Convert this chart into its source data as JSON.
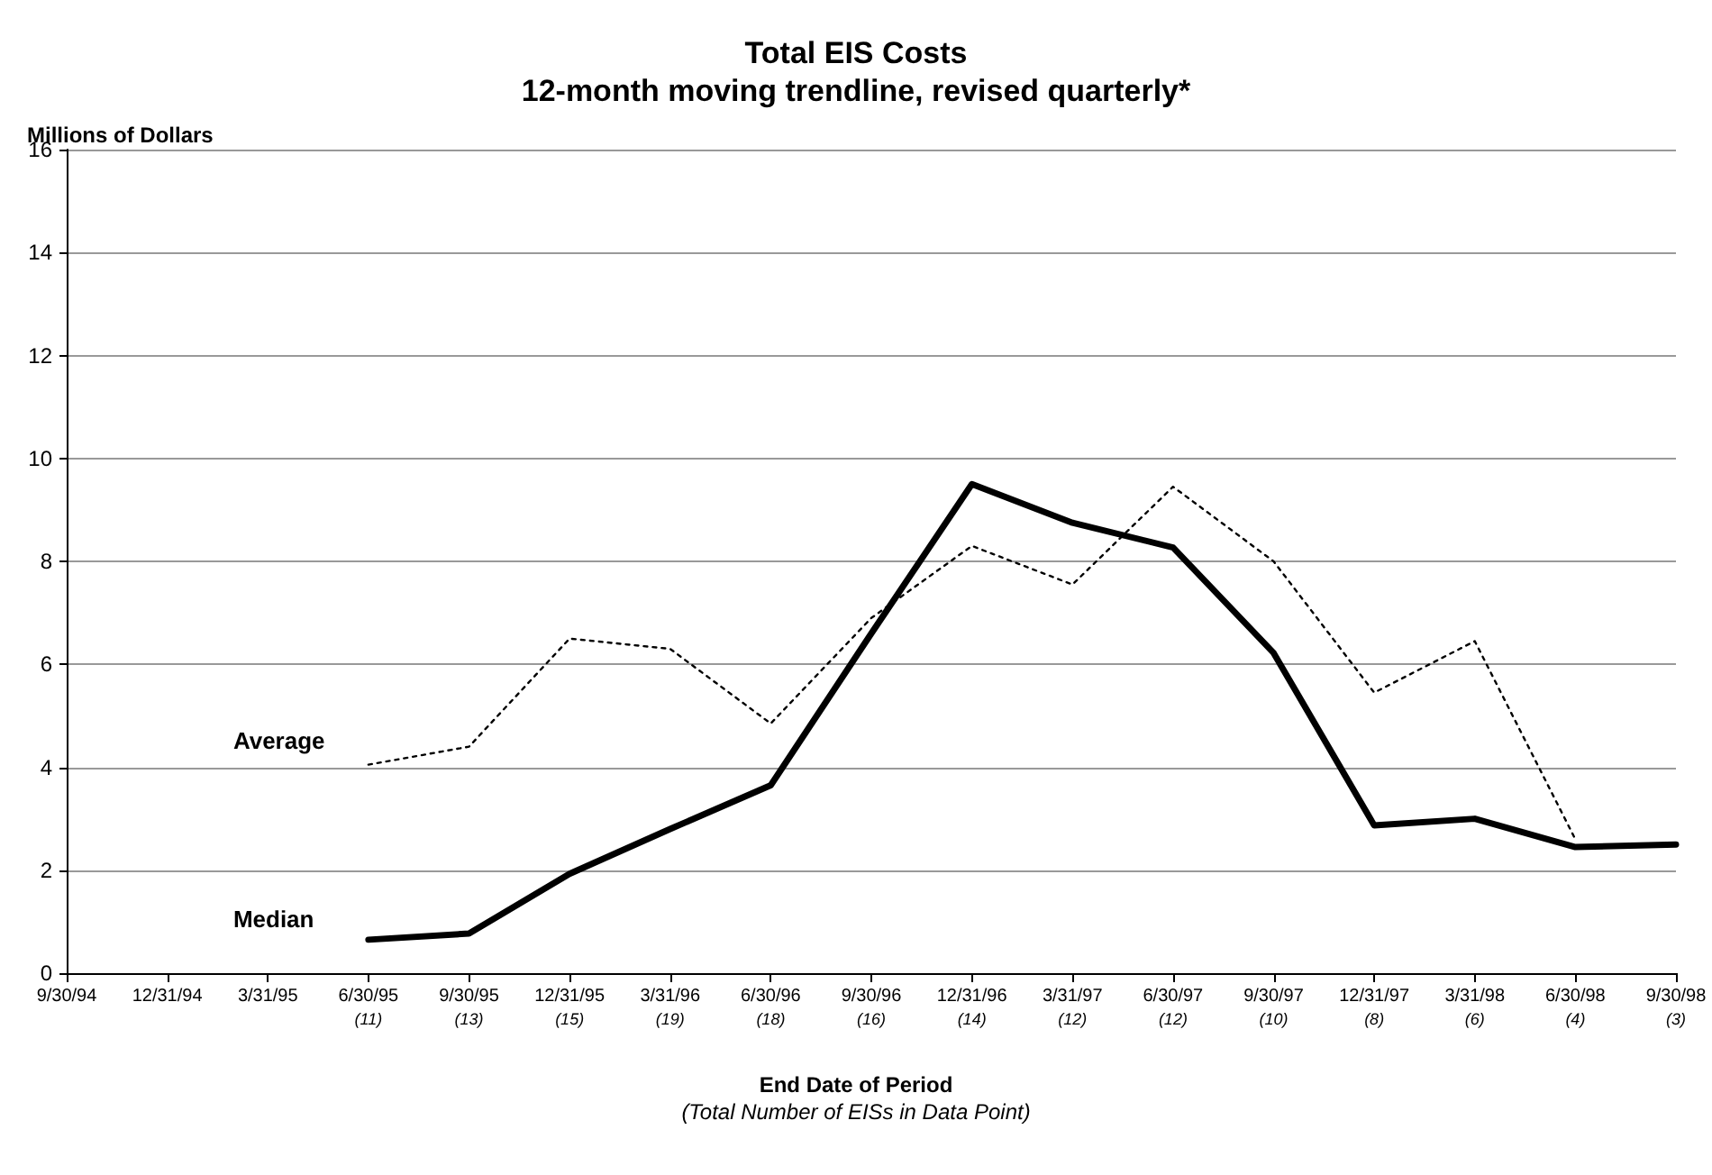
{
  "chart_data": {
    "type": "line",
    "title": "Total EIS Costs",
    "subtitle": "12-month moving trendline, revised quarterly*",
    "xlabel": "End Date of Period",
    "ylabel": "Millions of Dollars",
    "annotations": [
      "(Total Number of EISs in Data Point)"
    ],
    "categories": [
      "9/30/94",
      "12/31/94",
      "3/31/95",
      "6/30/95\n(11)",
      "9/30/95\n(13)",
      "12/31/95\n(15)",
      "3/31/96\n(19)",
      "6/30/96\n(18)",
      "9/30/96\n(16)",
      "12/31/96\n(14)",
      "3/31/97\n(12)",
      "6/30/97\n(12)",
      "9/30/97\n(10)",
      "12/31/97\n(8)",
      "3/31/98\n(6)",
      "6/30/98\n(4)",
      "9/30/98\n(3)"
    ],
    "series": [
      {
        "name": "Average",
        "color": "#000000",
        "line_style": "dotted",
        "values": [
          null,
          null,
          null,
          4.05,
          4.4,
          6.5,
          6.3,
          4.85,
          6.9,
          8.3,
          7.55,
          9.45,
          8.0,
          5.45,
          6.45,
          2.6,
          null
        ]
      },
      {
        "name": "Median",
        "color": "#000000",
        "line_style": "solid",
        "values": [
          null,
          null,
          null,
          0.65,
          0.77,
          1.93,
          2.8,
          3.65,
          6.6,
          9.5,
          8.75,
          8.27,
          6.22,
          2.87,
          3.0,
          2.45,
          2.5
        ]
      }
    ],
    "ylim": [
      0,
      16
    ],
    "yticks": [
      0,
      2,
      4,
      6,
      8,
      10,
      12,
      14,
      16
    ],
    "grid": "y",
    "legend": false,
    "marker": "none"
  }
}
